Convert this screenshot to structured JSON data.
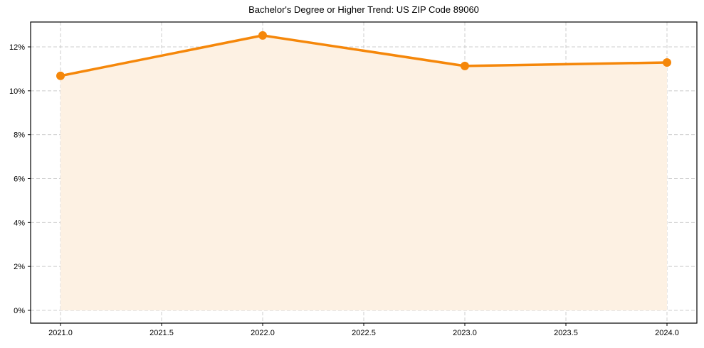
{
  "chart_data": {
    "type": "line",
    "title": "Bachelor's Degree or Higher Trend: US ZIP Code 89060",
    "xlabel": "",
    "ylabel": "",
    "x": [
      2021.0,
      2022.0,
      2023.0,
      2024.0
    ],
    "series": [
      {
        "name": "Bachelor's Degree or Higher",
        "values": [
          10.68,
          12.52,
          11.13,
          11.29
        ],
        "color": "#f5870a",
        "fill_color": "#fdf1e3",
        "marker": "circle"
      }
    ],
    "x_ticks": [
      "2021.0",
      "2021.5",
      "2022.0",
      "2022.5",
      "2023.0",
      "2023.5",
      "2024.0"
    ],
    "x_tick_values": [
      2021.0,
      2021.5,
      2022.0,
      2022.5,
      2023.0,
      2023.5,
      2024.0
    ],
    "y_ticks": [
      "0%",
      "2%",
      "4%",
      "6%",
      "8%",
      "10%",
      "12%"
    ],
    "y_tick_values": [
      0,
      2,
      4,
      6,
      8,
      10,
      12
    ],
    "xlim": [
      2020.85,
      2024.15
    ],
    "ylim": [
      -0.6,
      13.1
    ],
    "grid": true,
    "legend": null
  }
}
